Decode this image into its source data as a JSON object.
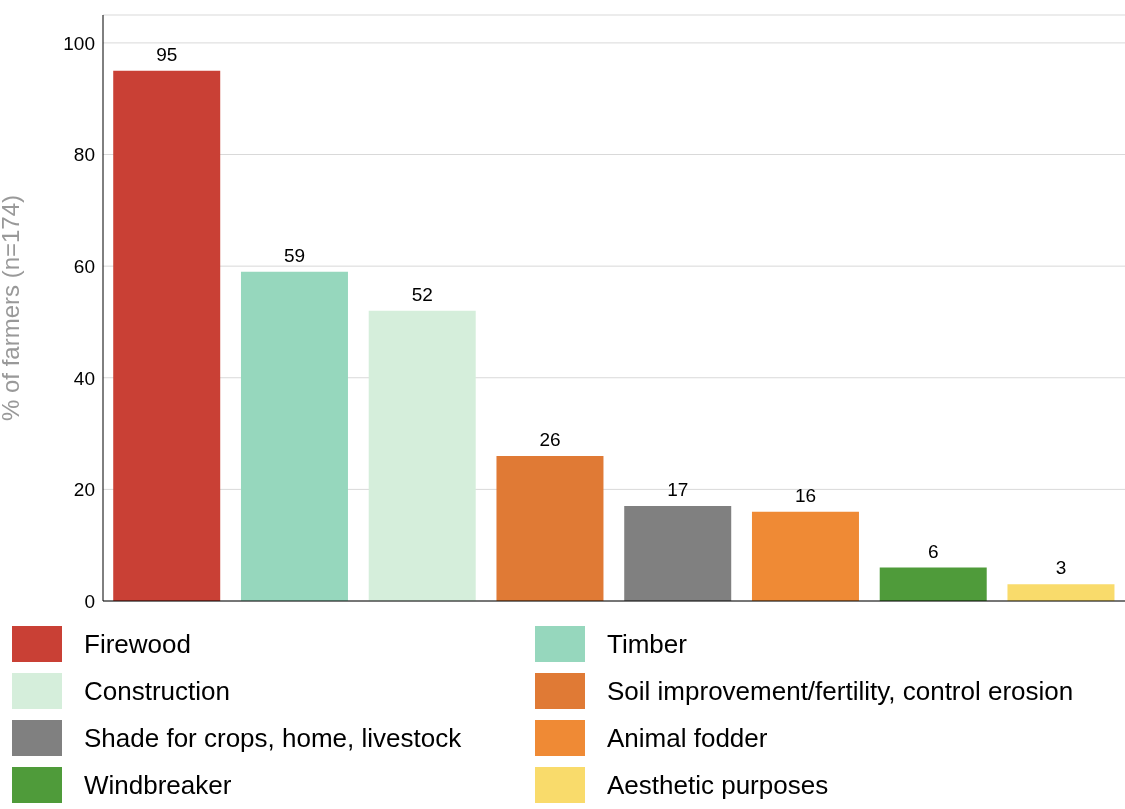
{
  "chart_data": {
    "type": "bar",
    "ylabel": "% of farmers (n=174)",
    "categories": [
      null,
      null,
      null,
      null,
      null,
      null,
      null,
      null
    ],
    "series": [
      {
        "name": "Firewood",
        "color": "#c94035",
        "values": [
          95,
          null,
          null,
          null,
          null,
          null,
          null,
          null
        ]
      },
      {
        "name": "Timber",
        "color": "#96d7bd",
        "values": [
          null,
          59,
          null,
          null,
          null,
          null,
          null,
          null
        ]
      },
      {
        "name": "Construction",
        "color": "#d5eedb",
        "values": [
          null,
          null,
          52,
          null,
          null,
          null,
          null,
          null
        ]
      },
      {
        "name": "Soil improvement/fertility, control erosion",
        "color": "#e07a35",
        "values": [
          null,
          null,
          null,
          26,
          null,
          null,
          null,
          null
        ]
      },
      {
        "name": "Shade for crops, home, livestock",
        "color": "#808080",
        "values": [
          null,
          null,
          null,
          null,
          17,
          null,
          null,
          null
        ]
      },
      {
        "name": "Animal fodder",
        "color": "#ef8a35",
        "values": [
          null,
          null,
          null,
          null,
          null,
          16,
          null,
          null
        ]
      },
      {
        "name": "Windbreaker",
        "color": "#4f9b3a",
        "values": [
          null,
          null,
          null,
          null,
          null,
          null,
          6,
          null
        ]
      },
      {
        "name": "Aesthetic purposes",
        "color": "#f9db6b",
        "values": [
          null,
          null,
          null,
          null,
          null,
          null,
          null,
          3
        ]
      }
    ],
    "ylim": [
      0,
      105
    ],
    "yticks": [
      0,
      20,
      40,
      60,
      80,
      100
    ],
    "grid": "y",
    "legend": "bottom",
    "tick_labels": "y",
    "data_labels": true
  }
}
